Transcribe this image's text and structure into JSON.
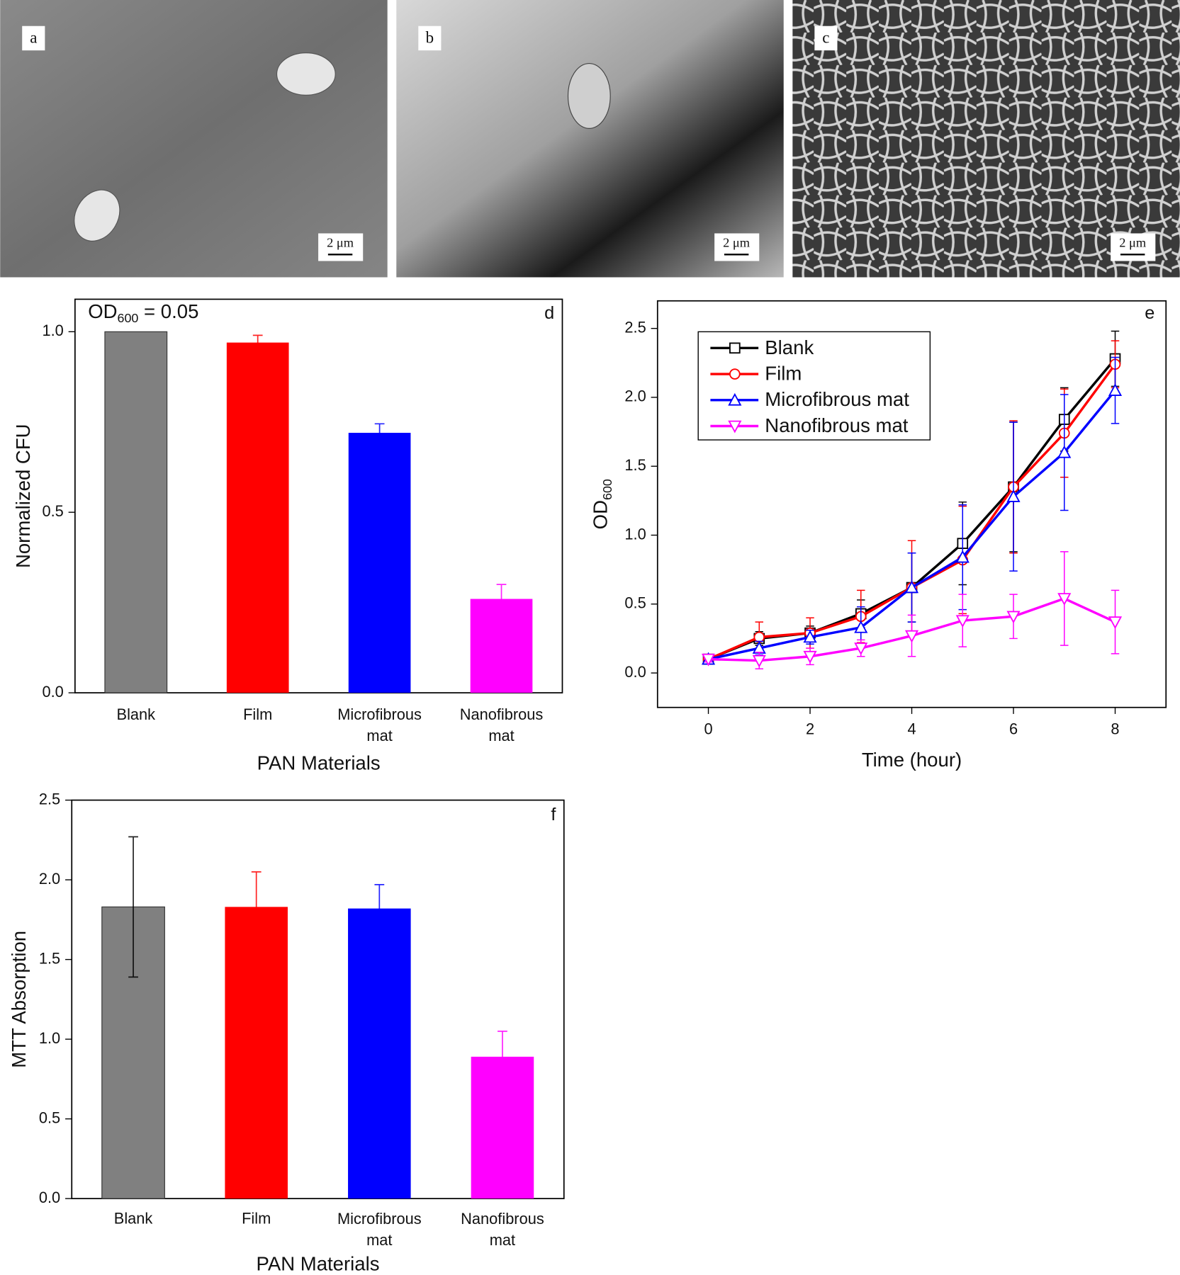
{
  "micrographs": [
    {
      "label": "a",
      "scale_bar": "2 μm"
    },
    {
      "label": "b",
      "scale_bar": "2 μm"
    },
    {
      "label": "c",
      "scale_bar": "2 μm"
    }
  ],
  "chart_data": [
    {
      "type": "bar",
      "panel_label": "d",
      "annotation": {
        "main": "OD",
        "sub": "600",
        "rest": " = 0.05"
      },
      "xlabel": "PAN Materials",
      "ylabel": "Normalized CFU",
      "categories": [
        "Blank",
        "Film",
        "Microfibrous mat",
        "Nanofibrous mat"
      ],
      "values": [
        1.0,
        0.97,
        0.72,
        0.26
      ],
      "errors": [
        null,
        0.02,
        0.025,
        0.04
      ],
      "colors": [
        "#808080",
        "#ff0000",
        "#0000ff",
        "#ff00ff"
      ],
      "ylim": [
        0,
        1.09
      ],
      "yticks": [
        {
          "value": 0,
          "label": "0.0"
        },
        {
          "value": 0.5,
          "label": "0.5"
        },
        {
          "value": 1,
          "label": "1.0"
        }
      ]
    },
    {
      "type": "line",
      "panel_label": "e",
      "xlabel": "Time (hour)",
      "ylabel": {
        "main": "OD",
        "sub": "600"
      },
      "x": [
        0,
        1,
        2,
        3,
        4,
        5,
        6,
        7,
        8
      ],
      "series": [
        {
          "name": "Blank",
          "color": "#000000",
          "marker": "square",
          "values": [
            0.1,
            0.25,
            0.29,
            0.43,
            0.62,
            0.94,
            1.35,
            1.84,
            2.28
          ],
          "errors": [
            0.02,
            0.05,
            0.05,
            0.1,
            0.25,
            0.3,
            0.47,
            0.23,
            0.2
          ]
        },
        {
          "name": "Film",
          "color": "#ff0000",
          "marker": "circle",
          "values": [
            0.1,
            0.26,
            0.29,
            0.41,
            0.62,
            0.82,
            1.35,
            1.74,
            2.24
          ],
          "errors": [
            0.02,
            0.11,
            0.11,
            0.19,
            0.34,
            0.39,
            0.48,
            0.32,
            0.17
          ]
        },
        {
          "name": "Microfibrous mat",
          "color": "#0000ff",
          "marker": "triangle-up",
          "values": [
            0.1,
            0.18,
            0.26,
            0.33,
            0.62,
            0.84,
            1.28,
            1.6,
            2.05
          ],
          "errors": [
            0.02,
            0.05,
            0.05,
            0.15,
            0.25,
            0.38,
            0.54,
            0.42,
            0.24
          ]
        },
        {
          "name": "Nanofibrous mat",
          "color": "#ff00ff",
          "marker": "triangle-down",
          "values": [
            0.1,
            0.09,
            0.12,
            0.18,
            0.27,
            0.38,
            0.41,
            0.54,
            0.37
          ],
          "errors": [
            0.02,
            0.06,
            0.06,
            0.06,
            0.15,
            0.19,
            0.16,
            0.34,
            0.23
          ]
        }
      ],
      "xlim": [
        -1,
        9
      ],
      "ylim": [
        -0.25,
        2.7
      ],
      "xticks": [
        0,
        2,
        4,
        6,
        8
      ],
      "yticks": [
        {
          "value": 0,
          "label": "0.0"
        },
        {
          "value": 0.5,
          "label": "0.5"
        },
        {
          "value": 1,
          "label": "1.0"
        },
        {
          "value": 1.5,
          "label": "1.5"
        },
        {
          "value": 2,
          "label": "2.0"
        },
        2.5
      ],
      "legend": "upper left"
    },
    {
      "type": "bar",
      "panel_label": "f",
      "xlabel": "PAN Materials",
      "ylabel": "MTT Absorption",
      "categories": [
        "Blank",
        "Film",
        "Microfibrous mat",
        "Nanofibrous mat"
      ],
      "values": [
        1.83,
        1.83,
        1.82,
        0.89
      ],
      "errors": [
        0.44,
        0.22,
        0.15,
        0.16
      ],
      "colors": [
        "#808080",
        "#ff0000",
        "#0000ff",
        "#ff00ff"
      ],
      "ylim": [
        0,
        2.5
      ],
      "yticks": [
        {
          "value": 0,
          "label": "0.0"
        },
        {
          "value": 0.5,
          "label": "0.5"
        },
        {
          "value": 1,
          "label": "1.0"
        },
        {
          "value": 1.5,
          "label": "1.5"
        },
        {
          "value": 2,
          "label": "2.0"
        },
        2.5
      ]
    }
  ]
}
